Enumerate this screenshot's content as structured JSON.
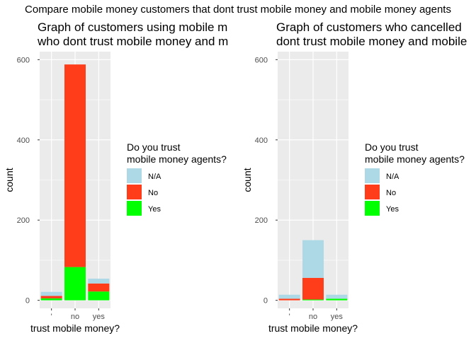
{
  "suptitle": "Compare mobile money customers that dont trust mobile money and mobile money agents",
  "colors": {
    "panel_bg": "#EBEBEB",
    "grid": "#FFFFFF",
    "axis_text": "#4D4D4D",
    "na": "#ADD8E6",
    "no": "#FF3D1A",
    "yes": "#00FF00"
  },
  "chart_data": [
    {
      "type": "bar",
      "stacked": true,
      "title_line1": "Graph of customers using mobile m",
      "title_line2": "who dont trust mobile money and m",
      "xlabel": "trust mobile money?",
      "ylabel": "count",
      "categories": [
        "'",
        "no",
        "yes"
      ],
      "ylim": [
        -20,
        620
      ],
      "yticks": [
        0,
        200,
        400,
        600
      ],
      "grid": true,
      "legend_position": "right",
      "legend_title_line1": "Do you trust",
      "legend_title_line2": "mobile money agents?",
      "series": [
        {
          "name": "Yes",
          "key": "yes",
          "values": [
            5,
            83,
            22
          ]
        },
        {
          "name": "No",
          "key": "no",
          "values": [
            6,
            505,
            20
          ]
        },
        {
          "name": "N/A",
          "key": "na",
          "values": [
            10,
            0,
            12
          ]
        }
      ],
      "legend": [
        "N/A",
        "No",
        "Yes"
      ]
    },
    {
      "type": "bar",
      "stacked": true,
      "title_line1": "Graph of customers who cancelled",
      "title_line2": "dont trust mobile money and mobile",
      "xlabel": "trust mobile money?",
      "ylabel": "count",
      "categories": [
        "'",
        "no",
        "yes"
      ],
      "ylim": [
        -20,
        620
      ],
      "yticks": [
        0,
        200,
        400,
        600
      ],
      "grid": true,
      "legend_position": "right",
      "legend_title_line1": "Do you trust",
      "legend_title_line2": "mobile money agents?",
      "series": [
        {
          "name": "Yes",
          "key": "yes",
          "values": [
            0,
            2,
            4
          ]
        },
        {
          "name": "No",
          "key": "no",
          "values": [
            4,
            54,
            0
          ]
        },
        {
          "name": "N/A",
          "key": "na",
          "values": [
            10,
            94,
            10
          ]
        }
      ],
      "legend": [
        "N/A",
        "No",
        "Yes"
      ]
    }
  ]
}
